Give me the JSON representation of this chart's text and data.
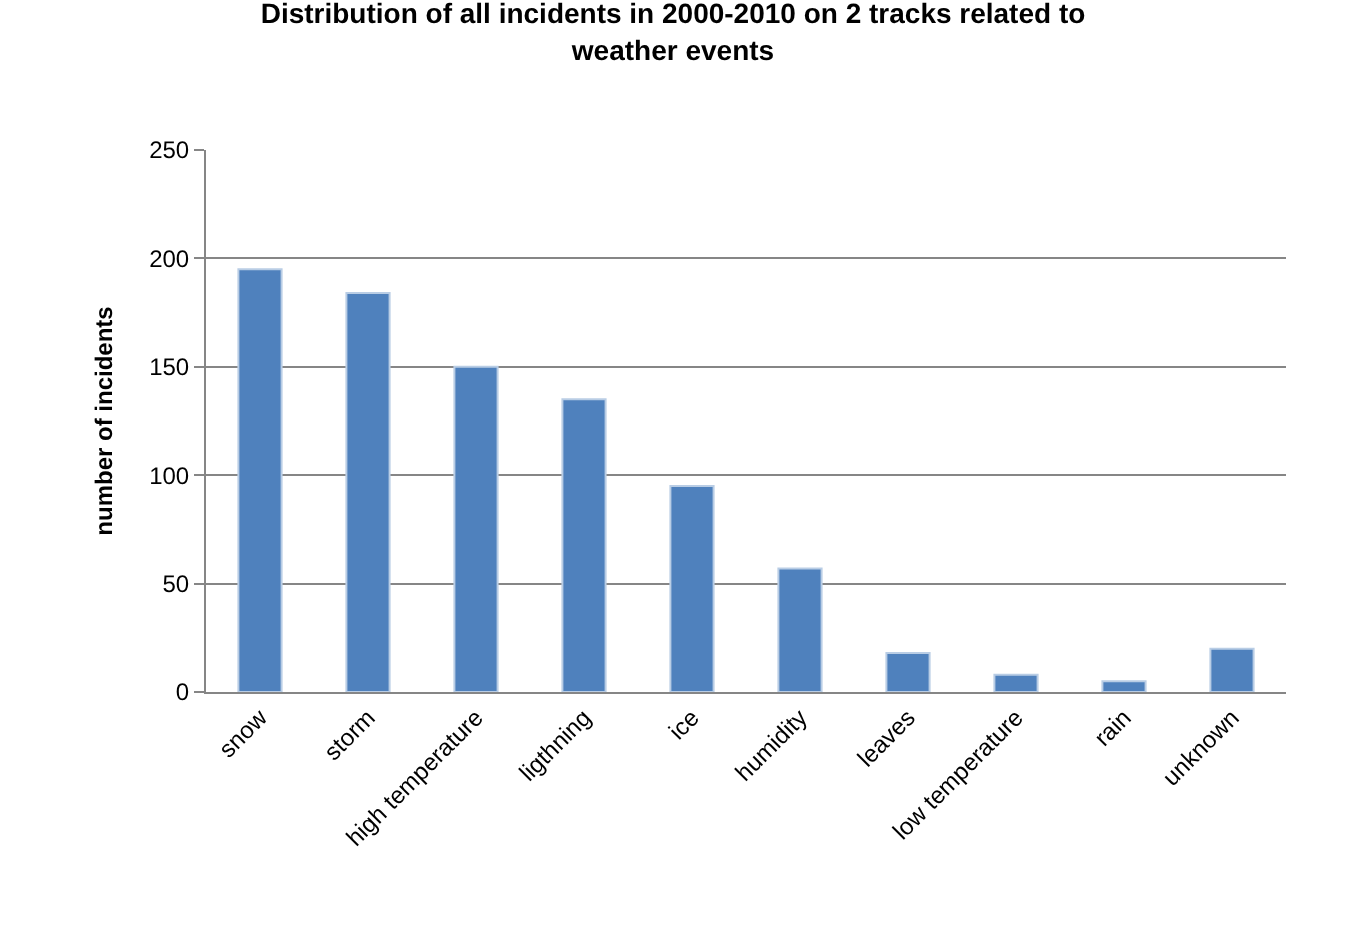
{
  "chart_data": {
    "type": "bar",
    "title": "Distribution of all incidents in 2000-2010 on 2 tracks related to weather events",
    "ylabel": "number of incidents",
    "categories": [
      "snow",
      "storm",
      "high temperature",
      "ligthning",
      "ice",
      "humidity",
      "leaves",
      "low temperature",
      "rain",
      "unknown"
    ],
    "values": [
      195,
      184,
      150,
      135,
      95,
      57,
      18,
      8,
      5,
      20
    ],
    "color": "#4f81bd",
    "ylim": [
      0,
      250
    ],
    "yticks": [
      0,
      50,
      100,
      150,
      200,
      250
    ],
    "grid": "y",
    "legend": false
  }
}
